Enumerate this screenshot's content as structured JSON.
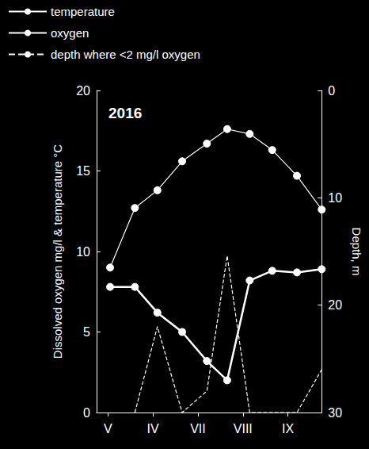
{
  "chart_data": {
    "type": "line",
    "title": "2016",
    "x": [
      0.6,
      1.7,
      2.7,
      3.8,
      4.9,
      5.8,
      6.8,
      7.8,
      8.9,
      10.0
    ],
    "xlim": [
      0,
      10
    ],
    "xticks": [
      {
        "value": 0.5,
        "label": "V"
      },
      {
        "value": 2.5,
        "label": "IV"
      },
      {
        "value": 4.5,
        "label": "VII"
      },
      {
        "value": 6.5,
        "label": "VIII"
      },
      {
        "value": 8.5,
        "label": "IX"
      }
    ],
    "ylabel": "Dissolved oxygen mg/l & temperature °C",
    "ylim": [
      0,
      20
    ],
    "yticks": [
      0,
      5,
      10,
      15,
      20
    ],
    "y2label": "Depth, m",
    "y2lim": [
      30,
      0
    ],
    "y2ticks": [
      0,
      10,
      20,
      30
    ],
    "grid": false,
    "legend": "top-left",
    "series": [
      {
        "name": "temperature",
        "color": "#ffffff",
        "marker": "circle",
        "line_style": "solid",
        "values": [
          9.0,
          12.7,
          13.8,
          15.6,
          16.7,
          17.6,
          17.3,
          16.3,
          14.7,
          12.6
        ]
      },
      {
        "name": "oxygen",
        "color": "#ffffff",
        "marker": "circle",
        "line_style": "solid",
        "values": [
          7.8,
          7.8,
          6.2,
          5.0,
          3.2,
          2.0,
          8.2,
          8.8,
          8.7,
          8.9
        ]
      },
      {
        "name": "depth where <2 mg/l oxygen",
        "color": "#ffffff",
        "marker": "none",
        "line_style": "dashed",
        "axis": "y2",
        "values": [
          null,
          30,
          22,
          30,
          28,
          15.4,
          30,
          30,
          30,
          26
        ]
      }
    ]
  }
}
